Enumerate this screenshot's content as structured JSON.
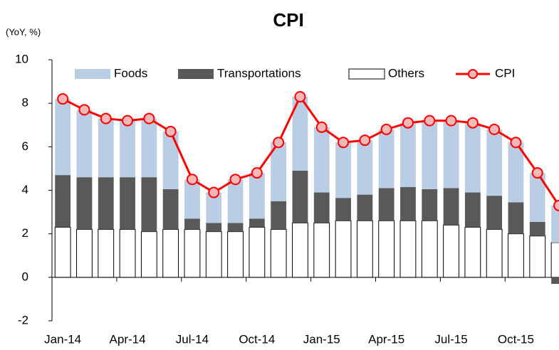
{
  "chart_data": {
    "type": "stacked_bar_line",
    "title": "CPI",
    "y_label": "(YoY, %)",
    "categories": [
      "Jan-14",
      null,
      null,
      "Apr-14",
      null,
      null,
      "Jul-14",
      null,
      null,
      "Oct-14",
      null,
      null,
      "Jan-15",
      null,
      null,
      "Apr-15",
      null,
      null,
      "Jul-15",
      null,
      null,
      "Oct-15",
      null,
      null
    ],
    "series": [
      {
        "name": "Foods",
        "kind": "bar",
        "color": "#b9cde5",
        "values": [
          3.5,
          3.1,
          2.7,
          2.6,
          2.7,
          2.65,
          1.8,
          1.4,
          2.0,
          2.1,
          2.7,
          3.4,
          3.0,
          2.55,
          2.5,
          2.7,
          2.95,
          3.15,
          3.1,
          3.2,
          3.05,
          2.75,
          2.25,
          1.7
        ]
      },
      {
        "name": "Transportations",
        "kind": "bar",
        "color": "#595959",
        "values": [
          2.4,
          2.4,
          2.4,
          2.4,
          2.5,
          1.85,
          0.5,
          0.4,
          0.4,
          0.4,
          1.3,
          2.4,
          1.4,
          1.05,
          1.2,
          1.5,
          1.55,
          1.45,
          1.7,
          1.6,
          1.55,
          1.45,
          0.65,
          -0.3
        ]
      },
      {
        "name": "Others",
        "kind": "bar",
        "color": "#ffffff",
        "values": [
          2.3,
          2.2,
          2.2,
          2.2,
          2.1,
          2.2,
          2.2,
          2.1,
          2.1,
          2.3,
          2.2,
          2.5,
          2.5,
          2.6,
          2.6,
          2.6,
          2.6,
          2.6,
          2.4,
          2.3,
          2.2,
          2.0,
          1.9,
          1.6
        ]
      },
      {
        "name": "CPI",
        "kind": "line",
        "color": "#ff0000",
        "values": [
          8.2,
          7.7,
          7.3,
          7.2,
          7.3,
          6.7,
          4.5,
          3.9,
          4.5,
          4.8,
          6.2,
          8.3,
          6.9,
          6.2,
          6.3,
          6.8,
          7.1,
          7.2,
          7.2,
          7.1,
          6.8,
          6.2,
          4.8,
          3.3
        ]
      }
    ],
    "ylim": [
      -2,
      10
    ],
    "yticks": [
      -2,
      0,
      2,
      4,
      6,
      8,
      10
    ],
    "grid": false
  }
}
